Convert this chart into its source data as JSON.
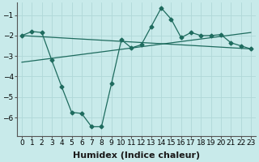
{
  "xlabel": "Humidex (Indice chaleur)",
  "background_color": "#c8eaea",
  "grid_color": "#b0d8d8",
  "line_color": "#1e6b5e",
  "xlim": [
    -0.5,
    23.5
  ],
  "ylim": [
    -6.9,
    -0.4
  ],
  "yticks": [
    -6,
    -5,
    -4,
    -3,
    -2,
    -1
  ],
  "xticks": [
    0,
    1,
    2,
    3,
    4,
    5,
    6,
    7,
    8,
    9,
    10,
    11,
    12,
    13,
    14,
    15,
    16,
    17,
    18,
    19,
    20,
    21,
    22,
    23
  ],
  "line1_x": [
    0,
    1,
    2,
    3,
    4,
    5,
    6,
    7,
    8,
    9,
    10,
    11,
    12,
    13,
    14,
    15,
    16,
    17,
    18,
    19,
    20,
    21,
    22,
    23
  ],
  "line1_y": [
    -2.0,
    -1.8,
    -1.85,
    -3.2,
    -4.5,
    -5.75,
    -5.8,
    -6.45,
    -6.45,
    -4.35,
    -2.2,
    -2.6,
    -2.45,
    -1.55,
    -0.65,
    -1.2,
    -2.1,
    -1.85,
    -2.0,
    -2.0,
    -1.95,
    -2.35,
    -2.5,
    -2.65
  ],
  "line2_x": [
    0,
    23
  ],
  "line2_y": [
    -2.0,
    -2.65
  ],
  "line3_x": [
    0,
    23
  ],
  "line3_y": [
    -3.3,
    -1.85
  ],
  "xlabel_fontsize": 8,
  "tick_fontsize": 6.5
}
